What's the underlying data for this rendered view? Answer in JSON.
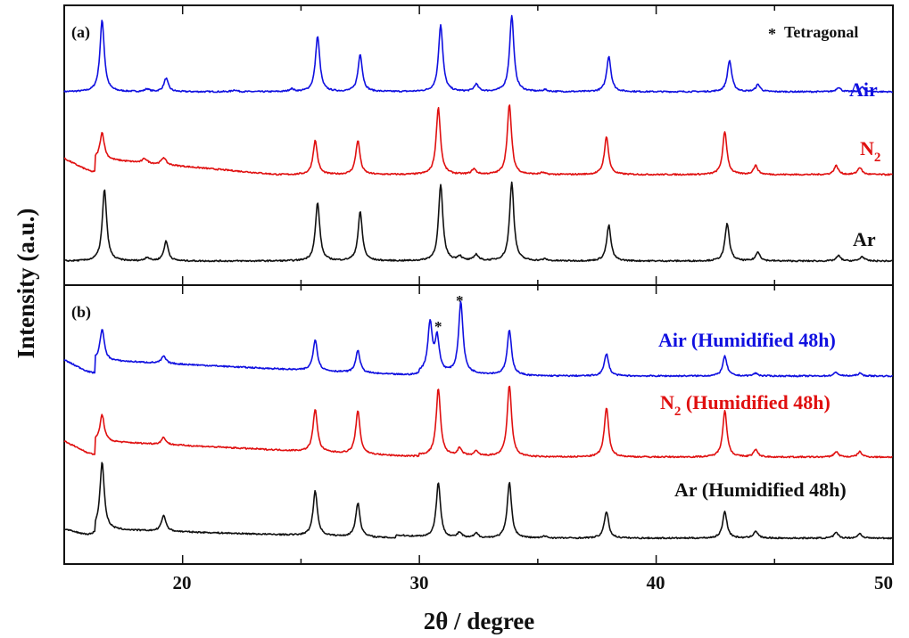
{
  "chart_data": [
    {
      "panel": "(a)",
      "type": "line",
      "xlabel": "2θ / degree",
      "ylabel": "Intensity (a.u.)",
      "xlim": [
        15,
        50
      ],
      "xticks": [
        20,
        30,
        40,
        50
      ],
      "legend_note": {
        "symbol": "*",
        "text": "Tetragonal"
      },
      "series": [
        {
          "name": "Air",
          "color": "#1010e0",
          "baseline": 10.5,
          "label_pos": "right",
          "peaks": [
            [
              16.6,
              80
            ],
            [
              18.5,
              3
            ],
            [
              19.3,
              15
            ],
            [
              22.2,
              2
            ],
            [
              24.6,
              3
            ],
            [
              25.7,
              62
            ],
            [
              27.5,
              42
            ],
            [
              30.9,
              75
            ],
            [
              32.4,
              8
            ],
            [
              33.9,
              85
            ],
            [
              35.3,
              2
            ],
            [
              38.0,
              40
            ],
            [
              43.1,
              35
            ],
            [
              44.3,
              8
            ],
            [
              47.7,
              5
            ],
            [
              48.7,
              5
            ]
          ],
          "drift": []
        },
        {
          "name": "N2",
          "color": "#e01010",
          "baseline": 6.6,
          "label_pos": "right",
          "peaks": [
            [
              16.6,
              30
            ],
            [
              18.4,
              5
            ],
            [
              19.2,
              8
            ],
            [
              25.6,
              38
            ],
            [
              27.4,
              38
            ],
            [
              30.8,
              75
            ],
            [
              32.3,
              6
            ],
            [
              33.8,
              78
            ],
            [
              35.2,
              2
            ],
            [
              37.9,
              42
            ],
            [
              42.9,
              48
            ],
            [
              44.2,
              10
            ],
            [
              47.6,
              10
            ],
            [
              48.6,
              8
            ]
          ],
          "drift": [
            [
              15,
              16.3,
              18
            ],
            [
              16.3,
              24,
              18
            ],
            [
              24,
              29.5,
              0
            ]
          ]
        },
        {
          "name": "Ar",
          "color": "#111111",
          "baseline": 1.6,
          "label_pos": "right",
          "peaks": [
            [
              16.7,
              80
            ],
            [
              18.5,
              4
            ],
            [
              19.3,
              22
            ],
            [
              25.7,
              65
            ],
            [
              27.5,
              55
            ],
            [
              30.9,
              85
            ],
            [
              31.7,
              5
            ],
            [
              32.4,
              7
            ],
            [
              33.9,
              88
            ],
            [
              35.3,
              2
            ],
            [
              38.0,
              40
            ],
            [
              43.0,
              42
            ],
            [
              44.3,
              10
            ],
            [
              47.7,
              6
            ],
            [
              48.7,
              5
            ]
          ],
          "drift": []
        }
      ]
    },
    {
      "panel": "(b)",
      "type": "line",
      "xlabel": "2θ / degree",
      "ylabel": "Intensity (a.u.)",
      "xlim": [
        15,
        50
      ],
      "xticks": [
        20,
        30,
        40,
        50
      ],
      "tetragonal_markers": [
        30.75,
        31.75
      ],
      "series": [
        {
          "name": "Air (Humidified 48h)",
          "color": "#1010e0",
          "baseline": 10.5,
          "label_pos": "right",
          "peaks": [
            [
              16.6,
              35
            ],
            [
              19.2,
              8
            ],
            [
              25.6,
              35
            ],
            [
              27.4,
              25
            ],
            [
              30.45,
              55
            ],
            [
              30.75,
              38
            ],
            [
              31.75,
              80
            ],
            [
              33.8,
              50
            ],
            [
              37.9,
              25
            ],
            [
              42.9,
              22
            ],
            [
              44.2,
              3
            ],
            [
              47.6,
              4
            ],
            [
              48.6,
              3
            ]
          ],
          "drift": [
            [
              15,
              16.3,
              18
            ],
            [
              16.3,
              30,
              18
            ],
            [
              30,
              35,
              4
            ]
          ]
        },
        {
          "name": "N2 (Humidified 48h)",
          "color": "#e01010",
          "baseline": 6.4,
          "label_pos": "right",
          "peaks": [
            [
              16.6,
              30
            ],
            [
              19.2,
              8
            ],
            [
              25.6,
              48
            ],
            [
              27.4,
              48
            ],
            [
              30.8,
              75
            ],
            [
              31.7,
              8
            ],
            [
              32.4,
              5
            ],
            [
              33.8,
              80
            ],
            [
              37.9,
              55
            ],
            [
              42.9,
              52
            ],
            [
              44.2,
              8
            ],
            [
              47.6,
              6
            ],
            [
              48.6,
              6
            ]
          ],
          "drift": [
            [
              15,
              16.3,
              18
            ],
            [
              16.3,
              30,
              18
            ],
            [
              30,
              35,
              2
            ]
          ]
        },
        {
          "name": "Ar (Humidified 48h)",
          "color": "#111111",
          "baseline": 1.6,
          "label_pos": "right",
          "peaks": [
            [
              16.6,
              75
            ],
            [
              19.2,
              18
            ],
            [
              25.6,
              50
            ],
            [
              27.4,
              38
            ],
            [
              30.8,
              62
            ],
            [
              31.7,
              6
            ],
            [
              32.4,
              5
            ],
            [
              33.8,
              62
            ],
            [
              35.3,
              2
            ],
            [
              37.9,
              30
            ],
            [
              42.9,
              30
            ],
            [
              44.2,
              8
            ],
            [
              47.6,
              6
            ],
            [
              48.6,
              5
            ]
          ],
          "drift": [
            [
              15,
              16.3,
              10
            ],
            [
              16.3,
              29,
              10
            ],
            [
              29,
              31,
              3
            ]
          ]
        }
      ]
    }
  ],
  "labels": {
    "ylabel": "Intensity (a.u.)",
    "xlabel": "2θ / degree",
    "panel_a": "(a)",
    "panel_b": "(b)",
    "note_symbol": "*",
    "note_text": "Tetragonal",
    "star": "*",
    "a_air": "Air",
    "a_n2_main": "N",
    "a_n2_sub": "2",
    "a_ar": "Ar",
    "b_air": "Air (Humidified 48h)",
    "b_n2_main": "N",
    "b_n2_sub": "2",
    "b_n2_rest": " (Humidified 48h)",
    "b_ar": "Ar (Humidified 48h)",
    "ticks": [
      "20",
      "30",
      "40",
      "50"
    ]
  },
  "colors": {
    "air": "#1010e0",
    "n2": "#e01010",
    "ar": "#111111",
    "axis": "#111111"
  }
}
